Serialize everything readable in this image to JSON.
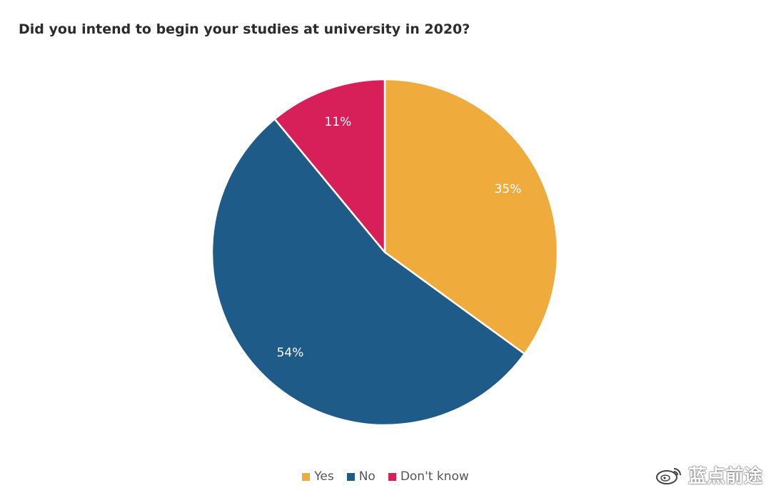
{
  "chart_data": {
    "type": "pie",
    "title": "Did you intend to begin your studies at university in 2020?",
    "slices": [
      {
        "label": "Yes",
        "value": 35,
        "value_label": "35%",
        "color": "#f0ab3d"
      },
      {
        "label": "No",
        "value": 54,
        "value_label": "54%",
        "color": "#1f5b88"
      },
      {
        "label": "Don't know",
        "value": 11,
        "value_label": "11%",
        "color": "#d71f5a"
      }
    ],
    "legend_placement": "bottom"
  },
  "watermark": {
    "text": "蓝点前途",
    "icon": "weibo-icon"
  }
}
